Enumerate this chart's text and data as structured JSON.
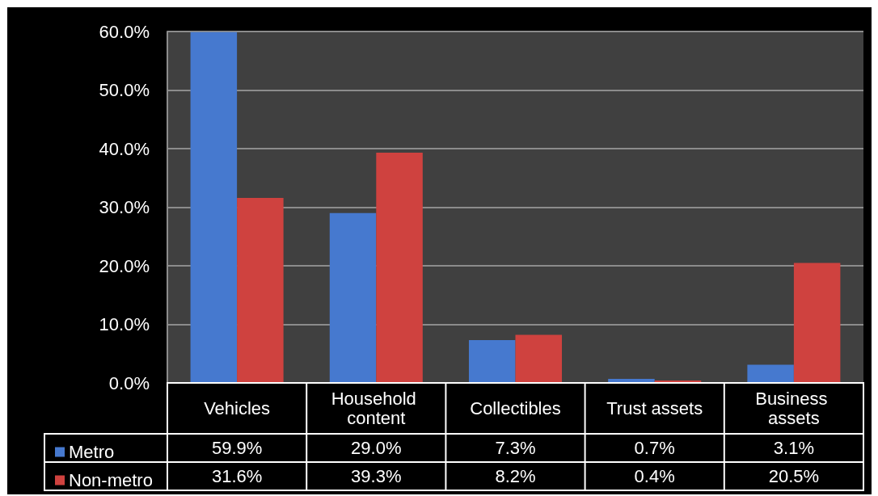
{
  "chart_data": {
    "type": "bar",
    "categories": [
      "Vehicles",
      "Household content",
      "Collectibles",
      "Trust assets",
      "Business assets"
    ],
    "series": [
      {
        "name": "Metro",
        "color": "#4679cf",
        "values": [
          59.9,
          29.0,
          7.3,
          0.7,
          3.1
        ],
        "value_labels": [
          "59.9%",
          "29.0%",
          "7.3%",
          "0.7%",
          "3.1%"
        ]
      },
      {
        "name": "Non-metro",
        "color": "#cf423f",
        "values": [
          31.6,
          39.3,
          8.2,
          0.4,
          20.5
        ],
        "value_labels": [
          "31.6%",
          "39.3%",
          "8.2%",
          "0.4%",
          "20.5%"
        ]
      }
    ],
    "ylim": [
      0,
      60
    ],
    "yticks": [
      {
        "value": 0,
        "label": "0.0%"
      },
      {
        "value": 10,
        "label": "10.0%"
      },
      {
        "value": 20,
        "label": "20.0%"
      },
      {
        "value": 30,
        "label": "30.0%"
      },
      {
        "value": 40,
        "label": "40.0%"
      },
      {
        "value": 50,
        "label": "50.0%"
      },
      {
        "value": 60,
        "label": "60.0%"
      }
    ],
    "grid": "y",
    "legend": "bottom left"
  }
}
